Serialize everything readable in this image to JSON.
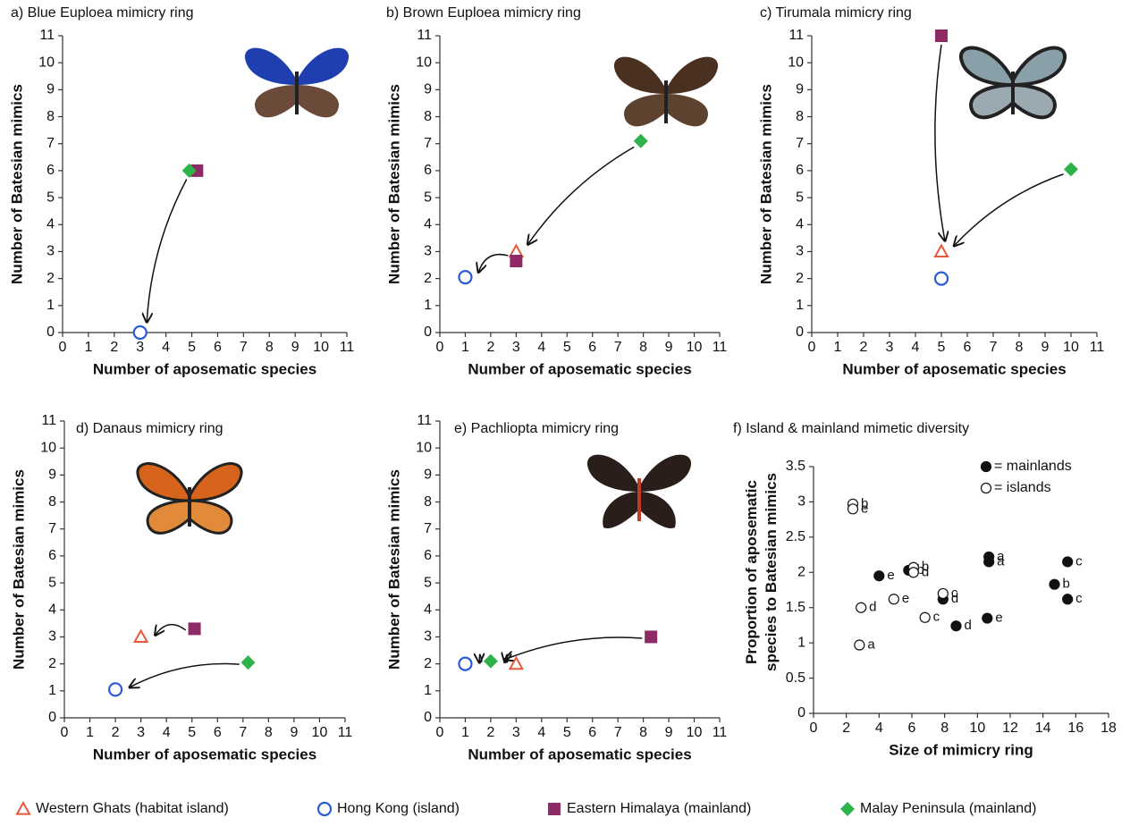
{
  "chart_data": [
    {
      "type": "scatter",
      "title": "a) Blue Euploea mimicry ring",
      "xlabel": "Number of aposematic species",
      "ylabel": "Number of Batesian mimics",
      "xlim": [
        0,
        11
      ],
      "xticks": [
        0,
        1,
        2,
        3,
        4,
        5,
        6,
        7,
        8,
        9,
        10,
        11
      ],
      "ylim": [
        0,
        11
      ],
      "yticks": [
        0,
        1,
        2,
        3,
        4,
        5,
        6,
        7,
        8,
        9,
        10,
        11
      ],
      "series": [
        {
          "x": [],
          "values": []
        },
        {
          "x": [
            3
          ],
          "values": [
            0
          ]
        },
        {
          "x": [
            5.2
          ],
          "values": [
            6
          ]
        },
        {
          "x": [
            4.9
          ],
          "values": [
            6
          ]
        }
      ],
      "arrows": [
        [
          3,
          1
        ]
      ]
    },
    {
      "type": "scatter",
      "title": "b) Brown Euploea mimicry ring",
      "xlabel": "Number of aposematic species",
      "ylabel": "Number of Batesian mimics",
      "xlim": [
        0,
        11
      ],
      "xticks": [
        0,
        1,
        2,
        3,
        4,
        5,
        6,
        7,
        8,
        9,
        10,
        11
      ],
      "ylim": [
        0,
        11
      ],
      "yticks": [
        0,
        1,
        2,
        3,
        4,
        5,
        6,
        7,
        8,
        9,
        10,
        11
      ],
      "series": [
        {
          "x": [
            3
          ],
          "values": [
            3
          ]
        },
        {
          "x": [
            1
          ],
          "values": [
            2.05
          ]
        },
        {
          "x": [
            3
          ],
          "values": [
            2.65
          ]
        },
        {
          "x": [
            7.9
          ],
          "values": [
            7.1
          ]
        }
      ],
      "arrows": [
        [
          3,
          0
        ],
        [
          0,
          1
        ]
      ]
    },
    {
      "type": "scatter",
      "title": "c) Tirumala mimicry ring",
      "xlabel": "Number of aposematic species",
      "ylabel": "Number of Batesian mimics",
      "xlim": [
        0,
        11
      ],
      "xticks": [
        0,
        1,
        2,
        3,
        4,
        5,
        6,
        7,
        8,
        9,
        10,
        11
      ],
      "ylim": [
        0,
        11
      ],
      "yticks": [
        0,
        1,
        2,
        3,
        4,
        5,
        6,
        7,
        8,
        9,
        10,
        11
      ],
      "series": [
        {
          "x": [
            5
          ],
          "values": [
            3
          ]
        },
        {
          "x": [
            5
          ],
          "values": [
            2
          ]
        },
        {
          "x": [
            5
          ],
          "values": [
            11
          ]
        },
        {
          "x": [
            10
          ],
          "values": [
            6.05
          ]
        }
      ],
      "arrows": [
        [
          2,
          0
        ],
        [
          3,
          0
        ]
      ]
    },
    {
      "type": "scatter",
      "title": "d) Danaus mimicry ring",
      "xlabel": "Number of aposematic species",
      "ylabel": "Number of Batesian mimics",
      "xlim": [
        0,
        11
      ],
      "xticks": [
        0,
        1,
        2,
        3,
        4,
        5,
        6,
        7,
        8,
        9,
        10,
        11
      ],
      "ylim": [
        0,
        11
      ],
      "yticks": [
        0,
        1,
        2,
        3,
        4,
        5,
        6,
        7,
        8,
        9,
        10,
        11
      ],
      "series": [
        {
          "x": [
            3
          ],
          "values": [
            3
          ]
        },
        {
          "x": [
            2
          ],
          "values": [
            1.05
          ]
        },
        {
          "x": [
            5.1
          ],
          "values": [
            3.3
          ]
        },
        {
          "x": [
            7.2
          ],
          "values": [
            2.05
          ]
        }
      ],
      "arrows": [
        [
          2,
          0
        ],
        [
          3,
          1
        ]
      ]
    },
    {
      "type": "scatter",
      "title": "e) Pachliopta mimicry ring",
      "xlabel": "Number of aposematic species",
      "ylabel": "Number of Batesian mimics",
      "xlim": [
        0,
        11
      ],
      "xticks": [
        0,
        1,
        2,
        3,
        4,
        5,
        6,
        7,
        8,
        9,
        10,
        11
      ],
      "ylim": [
        0,
        11
      ],
      "yticks": [
        0,
        1,
        2,
        3,
        4,
        5,
        6,
        7,
        8,
        9,
        10,
        11
      ],
      "series": [
        {
          "x": [
            3
          ],
          "values": [
            2
          ]
        },
        {
          "x": [
            1
          ],
          "values": [
            2
          ]
        },
        {
          "x": [
            8.3
          ],
          "values": [
            3
          ]
        },
        {
          "x": [
            2
          ],
          "values": [
            2.1
          ]
        }
      ],
      "arrows": [
        [
          2,
          3
        ],
        [
          3,
          1
        ],
        [
          0,
          3
        ]
      ]
    },
    {
      "type": "labeled-scatter",
      "title": "f) Island & mainland mimetic diversity",
      "xlabel": "Size of mimicry ring",
      "ylabel": "Proportion of aposematic species to Batesian mimics",
      "xlim": [
        0,
        18
      ],
      "xticks": [
        0,
        2,
        4,
        6,
        8,
        10,
        12,
        14,
        16,
        18
      ],
      "ylim": [
        0,
        3.5
      ],
      "yticks": [
        0,
        0.5,
        1,
        1.5,
        2,
        2.5,
        3,
        3.5
      ],
      "series": [
        {
          "name": "= mainlands",
          "filled": true,
          "x": [
            4,
            5.8,
            7.9,
            8.7,
            10.7,
            10.7,
            10.6,
            14.7,
            15.5,
            15.5
          ],
          "values": [
            1.95,
            2.03,
            1.62,
            1.24,
            2.22,
            2.15,
            1.35,
            1.83,
            2.15,
            1.62
          ],
          "point_labels": [
            "e",
            "b",
            "d",
            "d",
            "a",
            "a",
            "e",
            "b",
            "c",
            "c"
          ]
        },
        {
          "name": "= islands",
          "filled": false,
          "x": [
            2.4,
            2.4,
            2.9,
            2.8,
            4.9,
            6.1,
            6.1,
            7.9,
            6.8
          ],
          "values": [
            2.97,
            2.9,
            1.5,
            0.97,
            1.62,
            2.07,
            2.0,
            1.7,
            1.36
          ],
          "point_labels": [
            "b",
            "e",
            "d",
            "a",
            "e",
            "b",
            "d",
            "c",
            "c"
          ]
        }
      ]
    }
  ],
  "legend": [
    {
      "name": "Western Ghats (habitat island)",
      "color": "#e8593a",
      "marker": "triangle"
    },
    {
      "name": "Hong Kong (island)",
      "color": "#2a5bd7",
      "marker": "circle"
    },
    {
      "name": "Eastern Himalaya (mainland)",
      "color": "#8e2a66",
      "marker": "square"
    },
    {
      "name": "Malay Peninsula (mainland)",
      "color": "#2db34a",
      "marker": "diamond"
    }
  ]
}
